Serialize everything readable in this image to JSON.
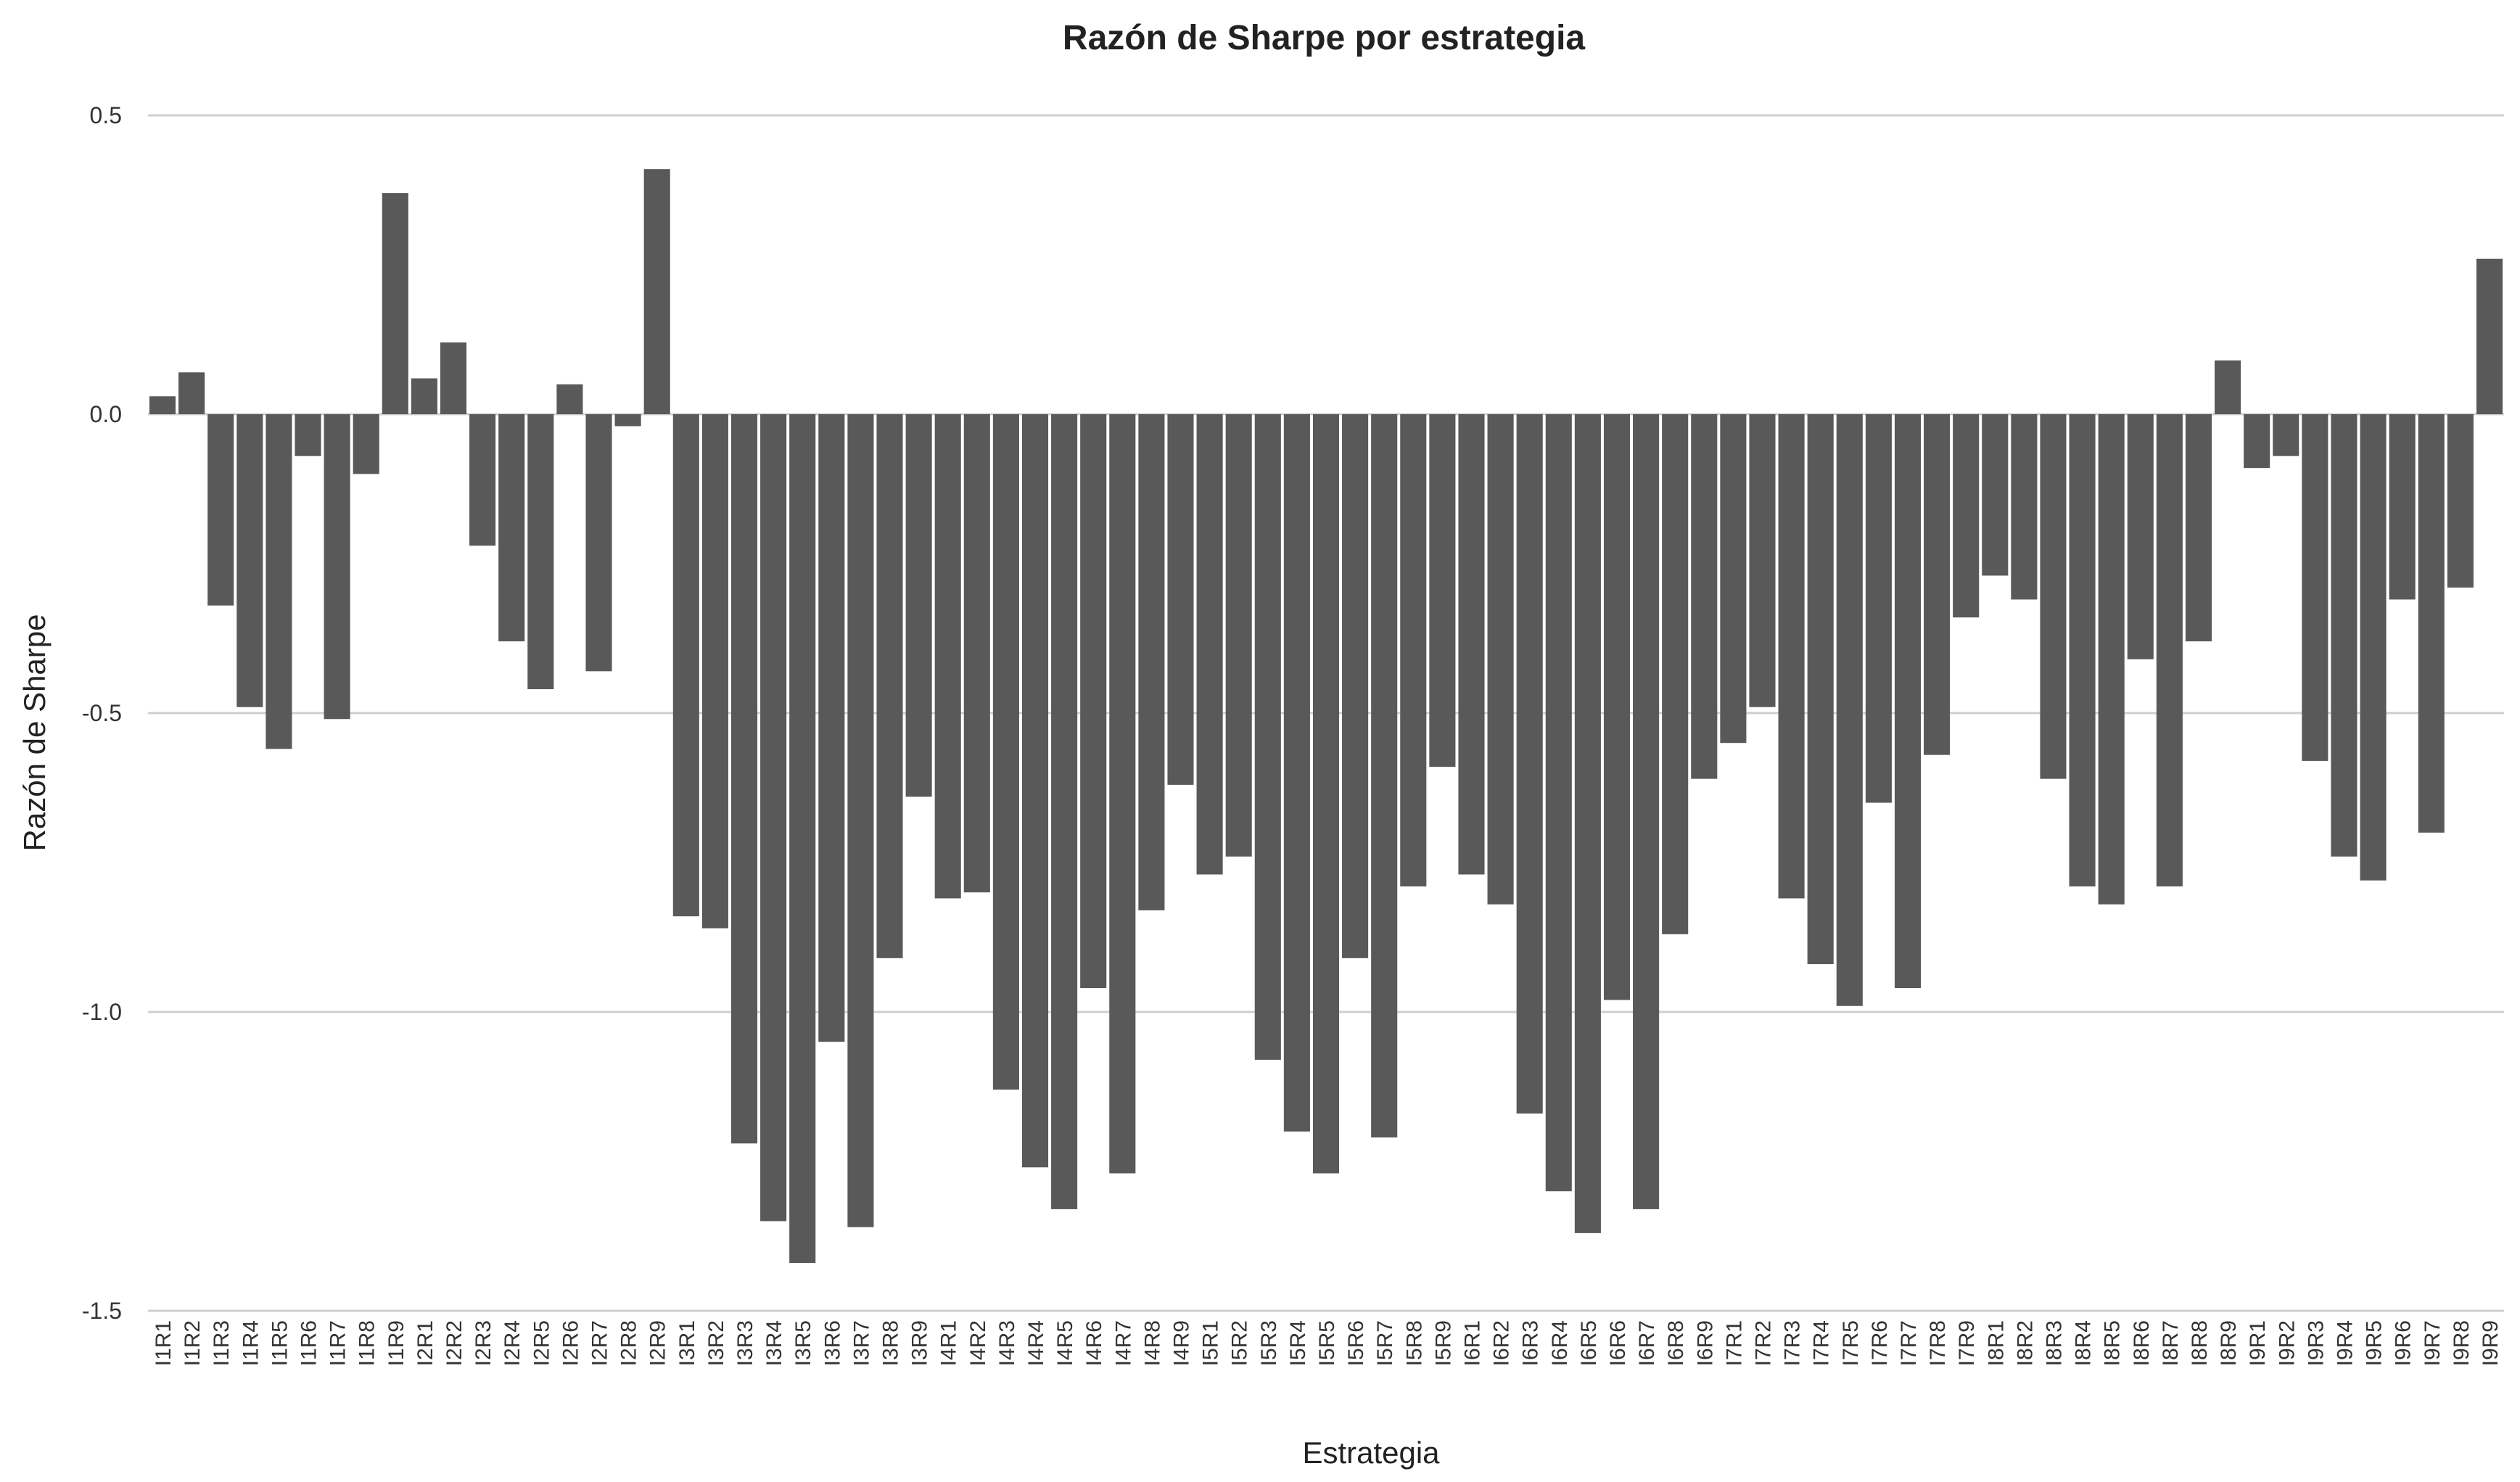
{
  "chart_data": {
    "type": "bar",
    "title": "Razón de Sharpe por estrategia",
    "xlabel": "Estrategia",
    "ylabel": "Razón de Sharpe",
    "ylim": [
      -1.5,
      0.5
    ],
    "yticks": [
      0.5,
      0.0,
      -0.5,
      -1.0,
      -1.5
    ],
    "ytick_labels": [
      "0.5",
      "0.0",
      "-0.5",
      "-1.0",
      "-1.5"
    ],
    "grid": "horizontal",
    "bar_color": "#595959",
    "categories": [
      "I1R1",
      "I1R2",
      "I1R3",
      "I1R4",
      "I1R5",
      "I1R6",
      "I1R7",
      "I1R8",
      "I1R9",
      "I2R1",
      "I2R2",
      "I2R3",
      "I2R4",
      "I2R5",
      "I2R6",
      "I2R7",
      "I2R8",
      "I2R9",
      "I3R1",
      "I3R2",
      "I3R3",
      "I3R4",
      "I3R5",
      "I3R6",
      "I3R7",
      "I3R8",
      "I3R9",
      "I4R1",
      "I4R2",
      "I4R3",
      "I4R4",
      "I4R5",
      "I4R6",
      "I4R7",
      "I4R8",
      "I4R9",
      "I5R1",
      "I5R2",
      "I5R3",
      "I5R4",
      "I5R5",
      "I5R6",
      "I5R7",
      "I5R8",
      "I5R9",
      "I6R1",
      "I6R2",
      "I6R3",
      "I6R4",
      "I6R5",
      "I6R6",
      "I6R7",
      "I6R8",
      "I6R9",
      "I7R1",
      "I7R2",
      "I7R3",
      "I7R4",
      "I7R5",
      "I7R6",
      "I7R7",
      "I7R8",
      "I7R9",
      "I8R1",
      "I8R2",
      "I8R3",
      "I8R4",
      "I8R5",
      "I8R6",
      "I8R7",
      "I8R8",
      "I8R9",
      "I9R1",
      "I9R2",
      "I9R3",
      "I9R4",
      "I9R5",
      "I9R6",
      "I9R7",
      "I9R8",
      "I9R9"
    ],
    "values": [
      0.03,
      0.07,
      -0.32,
      -0.49,
      -0.56,
      -0.07,
      -0.51,
      -0.1,
      0.37,
      0.06,
      0.12,
      -0.22,
      -0.38,
      -0.46,
      0.05,
      -0.43,
      -0.02,
      0.41,
      -0.84,
      -0.86,
      -1.22,
      -1.35,
      -1.42,
      -1.05,
      -1.36,
      -0.91,
      -0.64,
      -0.81,
      -0.8,
      -1.13,
      -1.26,
      -1.33,
      -0.96,
      -1.27,
      -0.83,
      -0.62,
      -0.77,
      -0.74,
      -1.08,
      -1.2,
      -1.27,
      -0.91,
      -1.21,
      -0.79,
      -0.59,
      -0.77,
      -0.82,
      -1.17,
      -1.3,
      -1.37,
      -0.98,
      -1.33,
      -0.87,
      -0.61,
      -0.55,
      -0.49,
      -0.81,
      -0.92,
      -0.99,
      -0.65,
      -0.96,
      -0.57,
      -0.34,
      -0.27,
      -0.31,
      -0.61,
      -0.79,
      -0.82,
      -0.41,
      -0.79,
      -0.38,
      0.09,
      -0.09,
      -0.07,
      -0.58,
      -0.74,
      -0.78,
      -0.31,
      -0.7,
      -0.29,
      0.26
    ]
  }
}
